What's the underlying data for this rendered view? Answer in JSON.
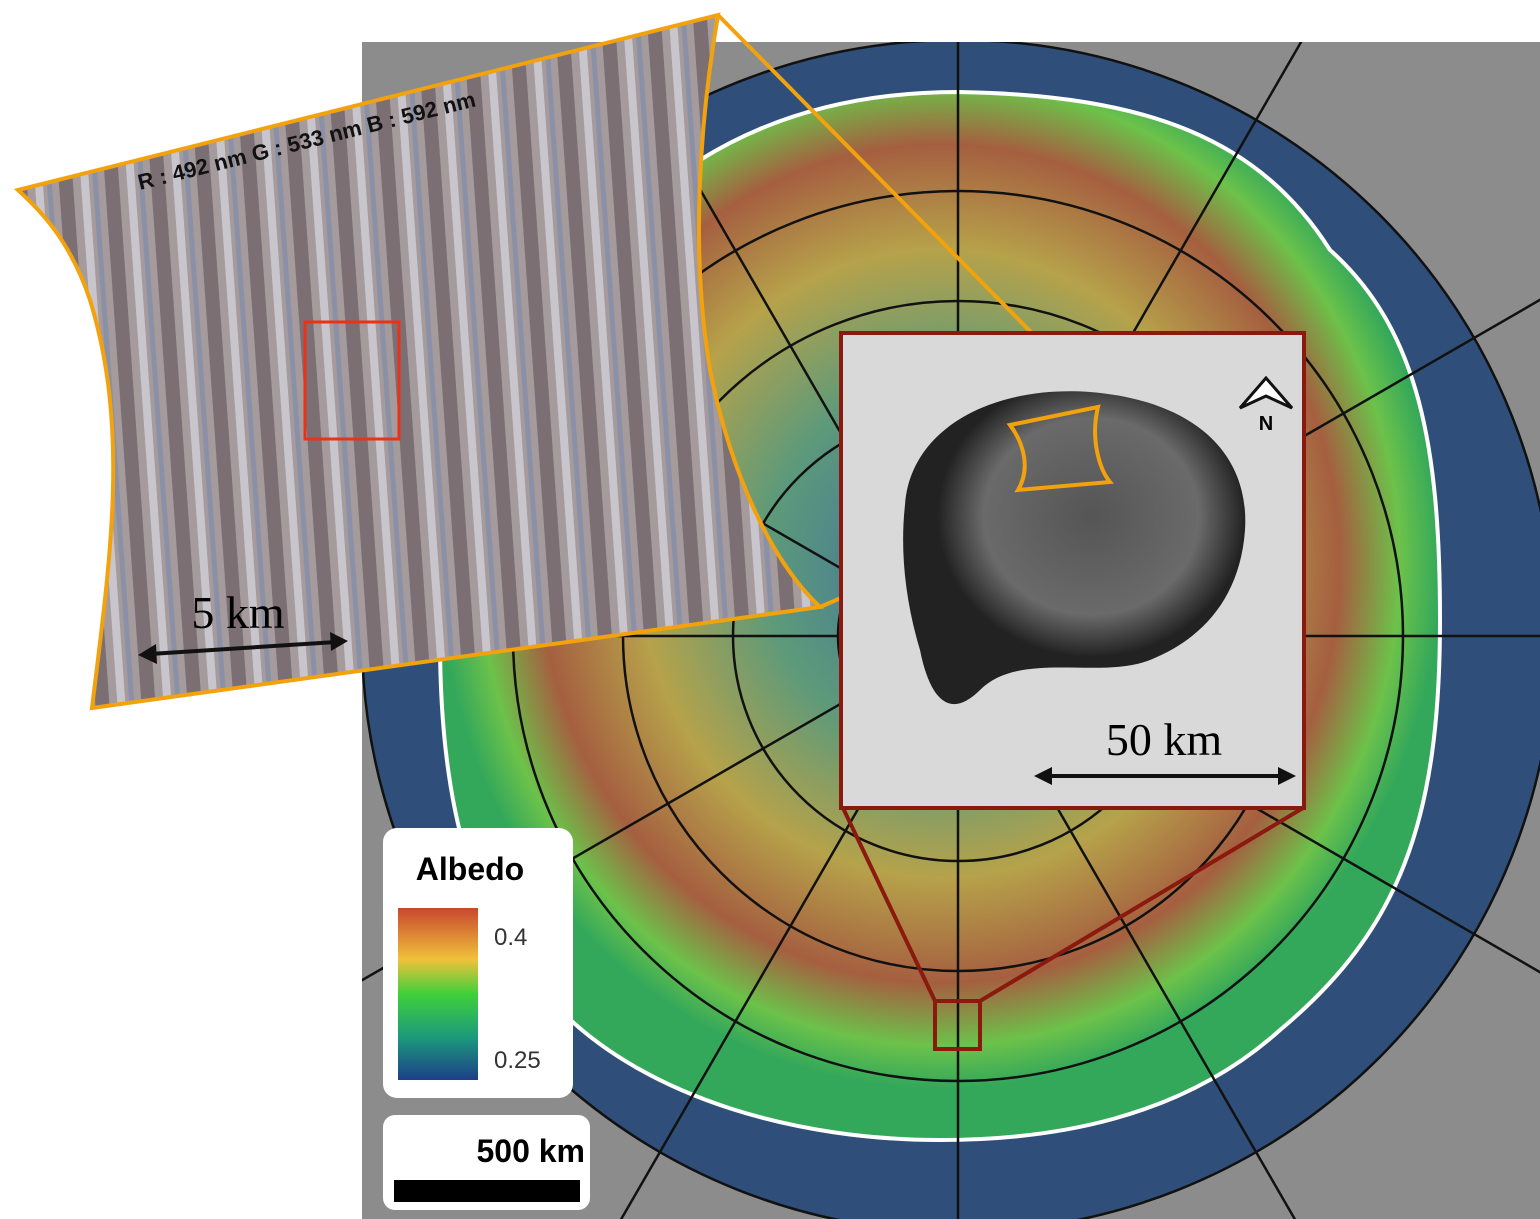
{
  "inset_image": {
    "bands": "R : 492 nm  G : 533 nm  B : 592 nm",
    "scale": "5 km"
  },
  "crater_image": {
    "north": "N",
    "scale": "50 km"
  },
  "legend": {
    "title": "Albedo",
    "max": 0.4,
    "min": 0.25
  },
  "map_scale": "500 km"
}
